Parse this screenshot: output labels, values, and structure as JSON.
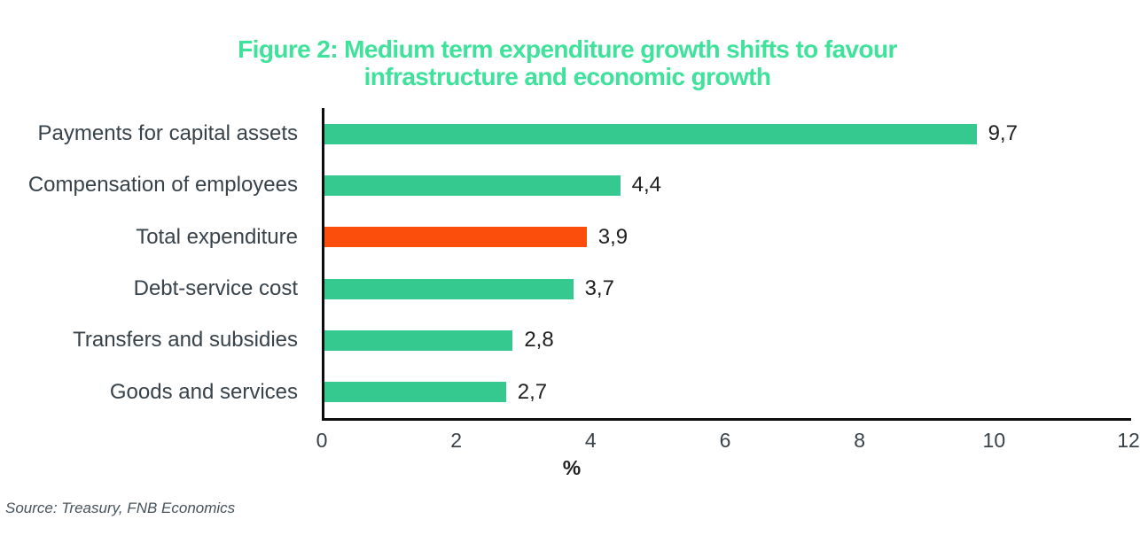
{
  "title": {
    "line1": "Figure 2: Medium term expenditure growth shifts to favour",
    "line2": "infrastructure and economic growth"
  },
  "source": "Source: Treasury, FNB Economics",
  "chart_data": {
    "type": "bar",
    "orientation": "horizontal",
    "title": "Figure 2: Medium term expenditure growth shifts to favour infrastructure and economic growth",
    "categories": [
      "Payments for capital assets",
      "Compensation of employees",
      "Total expenditure",
      "Debt-service cost",
      "Transfers and subsidies",
      "Goods and services"
    ],
    "values": [
      9.7,
      4.4,
      3.9,
      3.7,
      2.8,
      2.7
    ],
    "value_labels": [
      "9,7",
      "4,4",
      "3,9",
      "3,7",
      "2,8",
      "2,7"
    ],
    "highlight_category": "Total expenditure",
    "highlight_index": 2,
    "xlabel": "%",
    "x_ticks": [
      "0",
      "2",
      "4",
      "6",
      "8",
      "10",
      "12"
    ],
    "xlim": [
      0,
      12
    ],
    "grid": false,
    "legend": false,
    "colors": {
      "bar": "#35C98F",
      "highlight_bar": "#FB4E0D",
      "title_text": "#3EE29B",
      "category_text": "#37424A",
      "value_text": "#1F1F1F",
      "tick_text": "#37424A",
      "axis": "#0D0D0D",
      "source_text": "#46535B"
    }
  }
}
